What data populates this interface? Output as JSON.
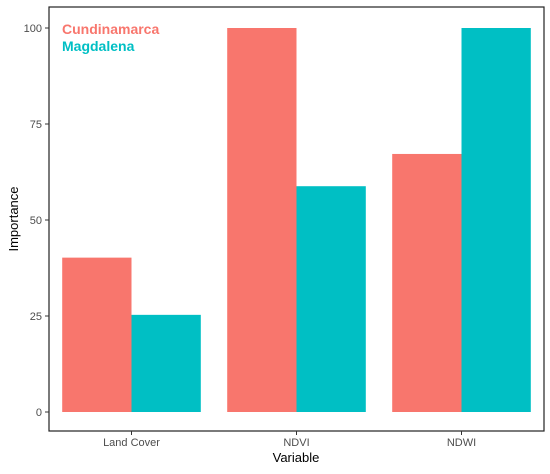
{
  "chart_data": {
    "type": "bar",
    "title": "",
    "xlabel": "Variable",
    "ylabel": "Importance",
    "categories": [
      "Land Cover",
      "NDVI",
      "NDWI"
    ],
    "series": [
      {
        "name": "Cundinamarca",
        "color": "#F8766D",
        "values": [
          40.2,
          100,
          67.2
        ]
      },
      {
        "name": "Magdalena",
        "color": "#00BFC4",
        "values": [
          25.3,
          58.8,
          100
        ]
      }
    ],
    "ylim": [
      0,
      100
    ],
    "yticks": [
      0,
      25,
      50,
      75,
      100
    ],
    "grid": false,
    "legend_position": "top-left"
  }
}
